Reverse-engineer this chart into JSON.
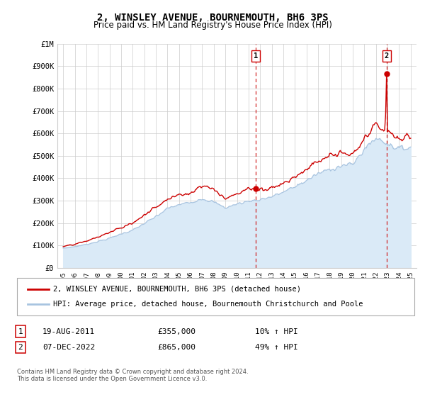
{
  "title": "2, WINSLEY AVENUE, BOURNEMOUTH, BH6 3PS",
  "subtitle": "Price paid vs. HM Land Registry's House Price Index (HPI)",
  "legend_line1": "2, WINSLEY AVENUE, BOURNEMOUTH, BH6 3PS (detached house)",
  "legend_line2": "HPI: Average price, detached house, Bournemouth Christchurch and Poole",
  "footnote": "Contains HM Land Registry data © Crown copyright and database right 2024.\nThis data is licensed under the Open Government Licence v3.0.",
  "label1_date": "19-AUG-2011",
  "label1_price": "£355,000",
  "label1_hpi": "10% ↑ HPI",
  "label2_date": "07-DEC-2022",
  "label2_price": "£865,000",
  "label2_hpi": "49% ↑ HPI",
  "ylim": [
    0,
    1000000
  ],
  "yticks": [
    0,
    100000,
    200000,
    300000,
    400000,
    500000,
    600000,
    700000,
    800000,
    900000,
    1000000
  ],
  "ytick_labels": [
    "£0",
    "£100K",
    "£200K",
    "£300K",
    "£400K",
    "£500K",
    "£600K",
    "£700K",
    "£800K",
    "£900K",
    "£1M"
  ],
  "hpi_color": "#a8c4e0",
  "hpi_fill_color": "#daeaf7",
  "price_color": "#cc0000",
  "grid_color": "#cccccc",
  "bg_color": "#ffffff",
  "transaction1_x": 2011.63,
  "transaction1_y": 355000,
  "transaction2_x": 2022.92,
  "transaction2_y": 865000,
  "xlim_left": 1994.5,
  "xlim_right": 2025.5
}
